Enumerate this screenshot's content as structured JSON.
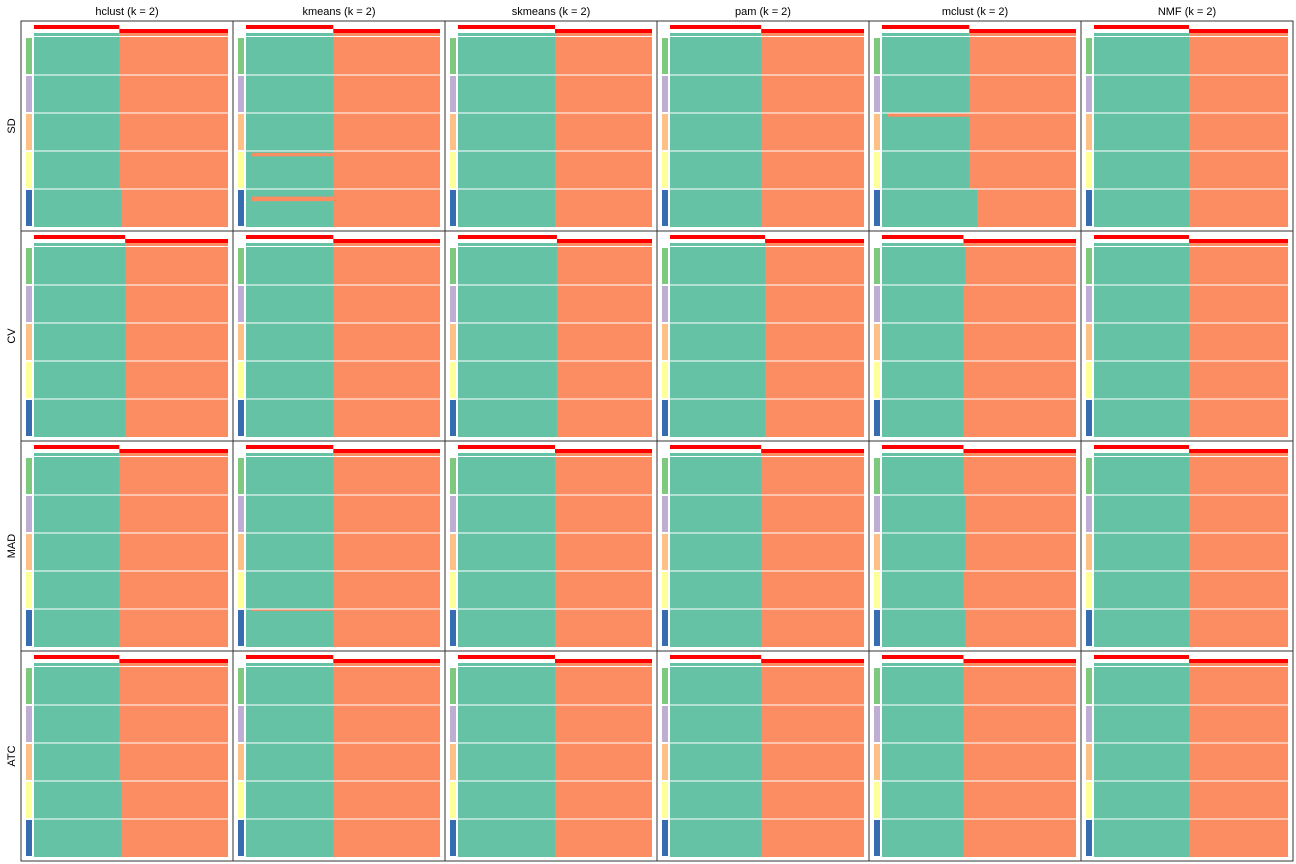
{
  "chart_data": {
    "type": "heatmap",
    "col_titles": [
      "hclust (k = 2)",
      "kmeans (k = 2)",
      "skmeans (k = 2)",
      "pam (k = 2)",
      "mclust (k = 2)",
      "NMF (k = 2)"
    ],
    "row_titles": [
      "SD",
      "CV",
      "MAD",
      "ATC"
    ],
    "class_colors": [
      "#66C2A5",
      "#FC8D62"
    ],
    "membership_colors": [
      "#FF0000",
      "#FFFFFF"
    ],
    "group_colors": [
      "#7FC97F",
      "#BEAED4",
      "#FDC086",
      "#FFFF99",
      "#386CB0"
    ],
    "panels": [
      [
        {
          "split": 0.44,
          "edge": [
            0.44,
            0.44,
            0.44,
            0.44,
            0.45
          ],
          "spill": []
        },
        {
          "split": 0.45,
          "edge": [
            0.45,
            0.45,
            0.45,
            0.45,
            0.45
          ],
          "spill": [
            [
              3,
              0.05,
              0.14
            ],
            [
              4,
              0.2,
              0.32
            ]
          ]
        },
        {
          "split": 0.5,
          "edge": [
            0.5,
            0.5,
            0.5,
            0.5,
            0.5
          ],
          "spill": []
        },
        {
          "split": 0.47,
          "edge": [
            0.47,
            0.47,
            0.47,
            0.47,
            0.47
          ],
          "spill": []
        },
        {
          "split": 0.45,
          "edge": [
            0.45,
            0.45,
            0.45,
            0.45,
            0.49
          ],
          "spill": [
            [
              2,
              0.0,
              0.1
            ]
          ]
        },
        {
          "split": 0.49,
          "edge": [
            0.49,
            0.49,
            0.49,
            0.49,
            0.49
          ],
          "spill": []
        }
      ],
      [
        {
          "split": 0.47,
          "edge": [
            0.47,
            0.47,
            0.47,
            0.47,
            0.47
          ],
          "spill": []
        },
        {
          "split": 0.45,
          "edge": [
            0.45,
            0.45,
            0.45,
            0.45,
            0.45
          ],
          "spill": []
        },
        {
          "split": 0.51,
          "edge": [
            0.51,
            0.51,
            0.51,
            0.51,
            0.51
          ],
          "spill": []
        },
        {
          "split": 0.49,
          "edge": [
            0.49,
            0.49,
            0.49,
            0.49,
            0.49
          ],
          "spill": []
        },
        {
          "split": 0.42,
          "edge": [
            0.43,
            0.42,
            0.42,
            0.42,
            0.42
          ],
          "spill": []
        },
        {
          "split": 0.49,
          "edge": [
            0.49,
            0.49,
            0.49,
            0.49,
            0.49
          ],
          "spill": []
        }
      ],
      [
        {
          "split": 0.44,
          "edge": [
            0.44,
            0.44,
            0.44,
            0.44,
            0.44
          ],
          "spill": []
        },
        {
          "split": 0.45,
          "edge": [
            0.45,
            0.45,
            0.45,
            0.45,
            0.45
          ],
          "spill": [
            [
              4,
              0.0,
              0.05
            ]
          ]
        },
        {
          "split": 0.5,
          "edge": [
            0.5,
            0.5,
            0.5,
            0.5,
            0.5
          ],
          "spill": []
        },
        {
          "split": 0.47,
          "edge": [
            0.47,
            0.47,
            0.47,
            0.47,
            0.47
          ],
          "spill": []
        },
        {
          "split": 0.42,
          "edge": [
            0.42,
            0.43,
            0.43,
            0.42,
            0.43
          ],
          "spill": []
        },
        {
          "split": 0.49,
          "edge": [
            0.49,
            0.49,
            0.49,
            0.49,
            0.49
          ],
          "spill": []
        }
      ],
      [
        {
          "split": 0.44,
          "edge": [
            0.44,
            0.44,
            0.44,
            0.45,
            0.45
          ],
          "spill": []
        },
        {
          "split": 0.45,
          "edge": [
            0.45,
            0.45,
            0.45,
            0.45,
            0.45
          ],
          "spill": []
        },
        {
          "split": 0.5,
          "edge": [
            0.5,
            0.5,
            0.5,
            0.5,
            0.5
          ],
          "spill": []
        },
        {
          "split": 0.47,
          "edge": [
            0.47,
            0.47,
            0.47,
            0.47,
            0.47
          ],
          "spill": []
        },
        {
          "split": 0.42,
          "edge": [
            0.42,
            0.42,
            0.42,
            0.42,
            0.42
          ],
          "spill": []
        },
        {
          "split": 0.49,
          "edge": [
            0.49,
            0.49,
            0.49,
            0.49,
            0.49
          ],
          "spill": []
        }
      ]
    ]
  }
}
